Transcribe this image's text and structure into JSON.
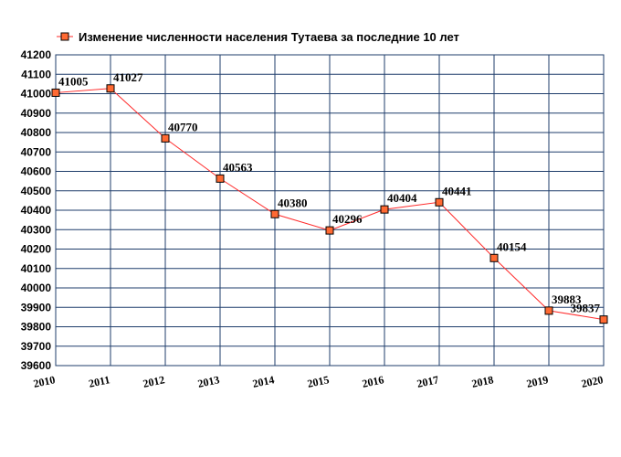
{
  "colors": {
    "grid": "#1f3d6b",
    "line": "#ff2a2a",
    "marker_fill": "#ff6a33",
    "marker_stroke": "#000000"
  },
  "chart_data": {
    "type": "line",
    "title": "",
    "xlabel": "",
    "ylabel": "",
    "legend": {
      "placement": "top",
      "label": "Изменение численности населения Тутаева за последние 10 лет"
    },
    "grid": true,
    "x": [
      2010,
      2011,
      2012,
      2013,
      2014,
      2015,
      2016,
      2017,
      2018,
      2019,
      2020
    ],
    "categories": [
      "2010",
      "2011",
      "2012",
      "2013",
      "2014",
      "2015",
      "2016",
      "2017",
      "2018",
      "2019",
      "2020"
    ],
    "series": [
      {
        "name": "Изменение численности населения Тутаева за последние 10 лет",
        "values": [
          41005,
          41027,
          40770,
          40563,
          40380,
          40296,
          40404,
          40441,
          40154,
          39883,
          39837
        ],
        "labels": [
          "41005",
          "41027",
          "40770",
          "40563",
          "40380",
          "40296",
          "40404",
          "40441",
          "40154",
          "39883",
          "39837"
        ]
      }
    ],
    "ylim": [
      39600,
      41200
    ],
    "yticks": [
      39600,
      39700,
      39800,
      39900,
      40000,
      40100,
      40200,
      40300,
      40400,
      40500,
      40600,
      40700,
      40800,
      40900,
      41000,
      41100,
      41200
    ]
  }
}
